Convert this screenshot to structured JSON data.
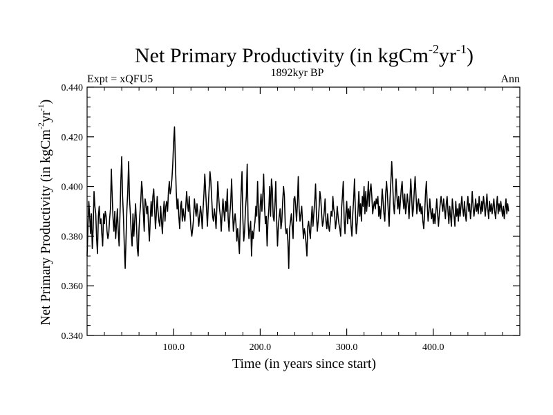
{
  "chart_data": {
    "type": "line",
    "title": "Net Primary Productivity (in kgCm",
    "title_exp1": "-2",
    "title_mid": "yr",
    "title_exp2": "-1",
    "title_end": ")",
    "subtitle": "1892kyr BP",
    "left_label": "Expt = xQFU5",
    "right_label": "Ann",
    "xlabel": "Time (in years since start)",
    "ylabel": {
      "main": "Net Primary Productivity (in kgCm",
      "exp1": "-2",
      "mid": "yr",
      "exp2": "-1",
      "end": ")"
    },
    "xlim": [
      0,
      500
    ],
    "ylim": [
      0.34,
      0.44
    ],
    "x_ticks": [
      {
        "value": 100,
        "label": "100.0"
      },
      {
        "value": 200,
        "label": "200.0"
      },
      {
        "value": 300,
        "label": "300.0"
      },
      {
        "value": 400,
        "label": "400.0"
      }
    ],
    "y_ticks": [
      {
        "value": 0.34,
        "label": "0.340"
      },
      {
        "value": 0.36,
        "label": "0.360"
      },
      {
        "value": 0.38,
        "label": "0.380"
      },
      {
        "value": 0.4,
        "label": "0.400"
      },
      {
        "value": 0.42,
        "label": "0.420"
      },
      {
        "value": 0.44,
        "label": "0.440"
      }
    ],
    "x_minor_step": 20,
    "y_minor_step": 0.004,
    "grid": false,
    "legend": "none",
    "series": [
      {
        "name": "Net Primary Productivity",
        "color": "#000000",
        "x_start": 0,
        "x_step": 1,
        "values": [
          0.372,
          0.384,
          0.394,
          0.388,
          0.381,
          0.389,
          0.375,
          0.383,
          0.398,
          0.392,
          0.389,
          0.379,
          0.373,
          0.388,
          0.392,
          0.385,
          0.387,
          0.381,
          0.376,
          0.389,
          0.385,
          0.39,
          0.388,
          0.382,
          0.379,
          0.381,
          0.387,
          0.391,
          0.407,
          0.396,
          0.387,
          0.382,
          0.39,
          0.379,
          0.385,
          0.391,
          0.382,
          0.376,
          0.389,
          0.402,
          0.412,
          0.396,
          0.388,
          0.376,
          0.367,
          0.379,
          0.391,
          0.398,
          0.41,
          0.395,
          0.389,
          0.381,
          0.376,
          0.389,
          0.38,
          0.386,
          0.393,
          0.386,
          0.375,
          0.372,
          0.383,
          0.389,
          0.394,
          0.402,
          0.398,
          0.389,
          0.382,
          0.395,
          0.393,
          0.389,
          0.392,
          0.384,
          0.378,
          0.387,
          0.394,
          0.388,
          0.396,
          0.399,
          0.391,
          0.383,
          0.389,
          0.396,
          0.39,
          0.386,
          0.384,
          0.392,
          0.386,
          0.381,
          0.389,
          0.394,
          0.386,
          0.392,
          0.394,
          0.39,
          0.398,
          0.402,
          0.397,
          0.399,
          0.403,
          0.409,
          0.418,
          0.424,
          0.41,
          0.398,
          0.391,
          0.395,
          0.388,
          0.383,
          0.392,
          0.394,
          0.386,
          0.391,
          0.388,
          0.386,
          0.392,
          0.398,
          0.393,
          0.39,
          0.396,
          0.389,
          0.383,
          0.38,
          0.383,
          0.387,
          0.395,
          0.391,
          0.388,
          0.393,
          0.389,
          0.384,
          0.388,
          0.392,
          0.389,
          0.383,
          0.391,
          0.397,
          0.405,
          0.398,
          0.391,
          0.384,
          0.392,
          0.399,
          0.406,
          0.402,
          0.395,
          0.388,
          0.386,
          0.391,
          0.388,
          0.383,
          0.392,
          0.402,
          0.396,
          0.391,
          0.388,
          0.382,
          0.389,
          0.395,
          0.39,
          0.386,
          0.394,
          0.39,
          0.399,
          0.387,
          0.382,
          0.389,
          0.394,
          0.403,
          0.391,
          0.382,
          0.386,
          0.389,
          0.385,
          0.378,
          0.383,
          0.378,
          0.373,
          0.386,
          0.398,
          0.406,
          0.387,
          0.378,
          0.382,
          0.391,
          0.396,
          0.409,
          0.386,
          0.379,
          0.383,
          0.386,
          0.372,
          0.382,
          0.379,
          0.383,
          0.386,
          0.392,
          0.388,
          0.402,
          0.39,
          0.382,
          0.392,
          0.397,
          0.39,
          0.396,
          0.405,
          0.392,
          0.385,
          0.388,
          0.376,
          0.386,
          0.391,
          0.4,
          0.388,
          0.403,
          0.399,
          0.388,
          0.386,
          0.392,
          0.402,
          0.387,
          0.376,
          0.384,
          0.388,
          0.391,
          0.383,
          0.386,
          0.394,
          0.4,
          0.396,
          0.384,
          0.381,
          0.383,
          0.378,
          0.367,
          0.383,
          0.386,
          0.389,
          0.384,
          0.379,
          0.395,
          0.396,
          0.392,
          0.386,
          0.393,
          0.404,
          0.391,
          0.386,
          0.389,
          0.392,
          0.385,
          0.379,
          0.383,
          0.381,
          0.377,
          0.372,
          0.384,
          0.386,
          0.382,
          0.379,
          0.386,
          0.392,
          0.384,
          0.389,
          0.394,
          0.401,
          0.389,
          0.382,
          0.386,
          0.391,
          0.398,
          0.395,
          0.389,
          0.384,
          0.386,
          0.39,
          0.395,
          0.386,
          0.383,
          0.389,
          0.384,
          0.382,
          0.386,
          0.39,
          0.388,
          0.396,
          0.391,
          0.389,
          0.383,
          0.386,
          0.392,
          0.388,
          0.385,
          0.383,
          0.38,
          0.391,
          0.396,
          0.402,
          0.387,
          0.381,
          0.389,
          0.394,
          0.385,
          0.391,
          0.387,
          0.392,
          0.384,
          0.38,
          0.389,
          0.395,
          0.403,
          0.39,
          0.381,
          0.385,
          0.39,
          0.398,
          0.388,
          0.393,
          0.386,
          0.396,
          0.392,
          0.4,
          0.389,
          0.398,
          0.39,
          0.395,
          0.402,
          0.392,
          0.398,
          0.401,
          0.396,
          0.389,
          0.392,
          0.394,
          0.391,
          0.395,
          0.393,
          0.396,
          0.388,
          0.392,
          0.387,
          0.392,
          0.399,
          0.394,
          0.389,
          0.386,
          0.397,
          0.402,
          0.397,
          0.39,
          0.384,
          0.395,
          0.402,
          0.41,
          0.402,
          0.393,
          0.389,
          0.396,
          0.403,
          0.396,
          0.391,
          0.396,
          0.389,
          0.394,
          0.399,
          0.402,
          0.395,
          0.391,
          0.397,
          0.389,
          0.392,
          0.397,
          0.393,
          0.387,
          0.395,
          0.403,
          0.396,
          0.388,
          0.391,
          0.398,
          0.404,
          0.397,
          0.389,
          0.393,
          0.395,
          0.39,
          0.393,
          0.389,
          0.392,
          0.386,
          0.383,
          0.389,
          0.397,
          0.402,
          0.393,
          0.386,
          0.39,
          0.395,
          0.39,
          0.387,
          0.391,
          0.385,
          0.389,
          0.385,
          0.39,
          0.395,
          0.389,
          0.384,
          0.389,
          0.393,
          0.396,
          0.393,
          0.39,
          0.395,
          0.391,
          0.387,
          0.393,
          0.396,
          0.39,
          0.385,
          0.392,
          0.388,
          0.384,
          0.395,
          0.391,
          0.388,
          0.384,
          0.394,
          0.388,
          0.391,
          0.386,
          0.393,
          0.388,
          0.392,
          0.396,
          0.391,
          0.388,
          0.394,
          0.389,
          0.386,
          0.392,
          0.396,
          0.39,
          0.393,
          0.387,
          0.391,
          0.398,
          0.392,
          0.388,
          0.391,
          0.395,
          0.39,
          0.393,
          0.389,
          0.396,
          0.392,
          0.389,
          0.394,
          0.39,
          0.396,
          0.393,
          0.388,
          0.392,
          0.397,
          0.391,
          0.387,
          0.394,
          0.39,
          0.393,
          0.389,
          0.392,
          0.395,
          0.39,
          0.387,
          0.392,
          0.396,
          0.389,
          0.393,
          0.39,
          0.394,
          0.391,
          0.388,
          0.392,
          0.387,
          0.391,
          0.395,
          0.389,
          0.393,
          0.39
        ]
      }
    ]
  }
}
